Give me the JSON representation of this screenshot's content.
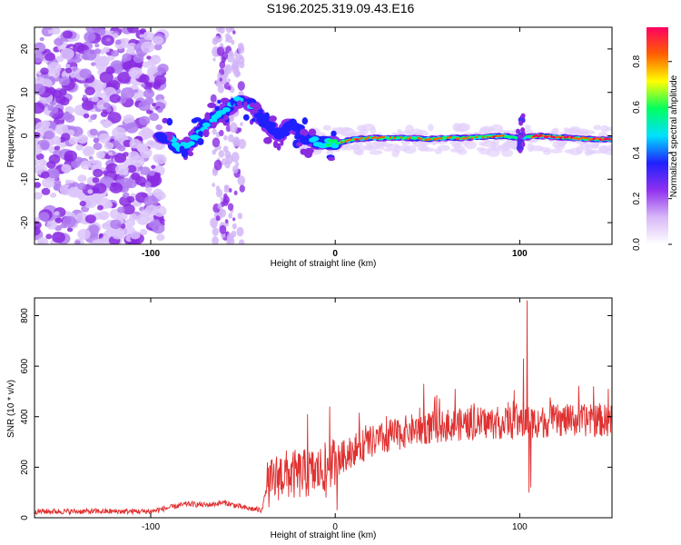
{
  "title": "S196.2025.319.09.43.E16",
  "chart_data": [
    {
      "type": "heatmap",
      "name": "spectrogram",
      "xlabel": "Height of straight line (km)",
      "ylabel": "Frequency (Hz)",
      "xlim": [
        -163,
        150
      ],
      "ylim": [
        -25,
        25
      ],
      "xticks": [
        -100,
        0,
        100
      ],
      "yticks": [
        20,
        10,
        0,
        -10,
        -20
      ],
      "colorbar": {
        "label": "Normalized spectral amplitude",
        "range": [
          0.0,
          0.95
        ],
        "ticks": [
          0.0,
          0.2,
          0.4,
          0.6,
          0.8
        ],
        "colormap": [
          "#ffffff",
          "#d8b8f8",
          "#9030f0",
          "#2020ff",
          "#00e0ff",
          "#00ff60",
          "#ffff00",
          "#ff6000",
          "#ff0060"
        ]
      },
      "ridge": [
        [
          -95,
          0.0,
          0.35
        ],
        [
          -90,
          -0.5,
          0.45
        ],
        [
          -85,
          -3.0,
          0.5
        ],
        [
          -80,
          -2.0,
          0.5
        ],
        [
          -75,
          0.0,
          0.5
        ],
        [
          -70,
          2.5,
          0.5
        ],
        [
          -65,
          4.5,
          0.45
        ],
        [
          -60,
          5.5,
          0.4
        ],
        [
          -55,
          7.5,
          0.45
        ],
        [
          -50,
          8.5,
          0.45
        ],
        [
          -45,
          7.0,
          0.4
        ],
        [
          -40,
          4.0,
          0.35
        ],
        [
          -35,
          2.0,
          0.35
        ],
        [
          -30,
          0.0,
          0.35
        ],
        [
          -25,
          2.5,
          0.4
        ],
        [
          -20,
          1.5,
          0.35
        ],
        [
          -15,
          -1.0,
          0.35
        ],
        [
          -10,
          -1.5,
          0.45
        ],
        [
          -5,
          -1.5,
          0.55
        ],
        [
          0,
          -1.8,
          0.6
        ],
        [
          10,
          -0.8,
          0.8
        ],
        [
          20,
          -0.5,
          0.75
        ],
        [
          30,
          -0.5,
          0.7
        ],
        [
          40,
          -0.5,
          0.72
        ],
        [
          50,
          -0.8,
          0.7
        ],
        [
          60,
          -0.5,
          0.7
        ],
        [
          70,
          -0.5,
          0.75
        ],
        [
          80,
          -0.3,
          0.72
        ],
        [
          90,
          0.0,
          0.8
        ],
        [
          100,
          -0.5,
          0.5
        ],
        [
          110,
          0.0,
          0.95
        ],
        [
          120,
          -0.3,
          0.8
        ],
        [
          130,
          -0.5,
          0.8
        ],
        [
          140,
          -0.8,
          0.85
        ],
        [
          150,
          -0.8,
          0.85
        ]
      ]
    },
    {
      "type": "line",
      "name": "snr",
      "xlabel": "Height of straight line (km)",
      "ylabel": "SNR (10 * v/v)",
      "xlim": [
        -163,
        150
      ],
      "ylim": [
        0,
        870
      ],
      "xticks": [
        -100,
        0,
        100
      ],
      "yticks": [
        0,
        200,
        400,
        600,
        800
      ],
      "color": "#e03030",
      "trend": [
        [
          -163,
          25
        ],
        [
          -120,
          25
        ],
        [
          -100,
          25
        ],
        [
          -90,
          40
        ],
        [
          -80,
          55
        ],
        [
          -70,
          50
        ],
        [
          -60,
          60
        ],
        [
          -50,
          40
        ],
        [
          -40,
          30
        ],
        [
          -37,
          120
        ],
        [
          -30,
          170
        ],
        [
          -20,
          170
        ],
        [
          -10,
          180
        ],
        [
          -5,
          200
        ],
        [
          0,
          220
        ],
        [
          10,
          270
        ],
        [
          20,
          300
        ],
        [
          30,
          320
        ],
        [
          40,
          345
        ],
        [
          50,
          355
        ],
        [
          60,
          365
        ],
        [
          80,
          375
        ],
        [
          100,
          375
        ],
        [
          103,
          380
        ],
        [
          110,
          380
        ],
        [
          120,
          385
        ],
        [
          130,
          385
        ],
        [
          150,
          385
        ]
      ],
      "spikes": [
        [
          -3,
          440
        ],
        [
          -15,
          410
        ],
        [
          -5,
          80
        ],
        [
          1,
          30
        ],
        [
          48,
          530
        ],
        [
          65,
          510
        ],
        [
          97,
          505
        ],
        [
          102,
          630
        ],
        [
          104,
          860
        ],
        [
          105,
          100
        ],
        [
          106,
          120
        ],
        [
          140,
          520
        ],
        [
          148,
          510
        ]
      ]
    }
  ]
}
